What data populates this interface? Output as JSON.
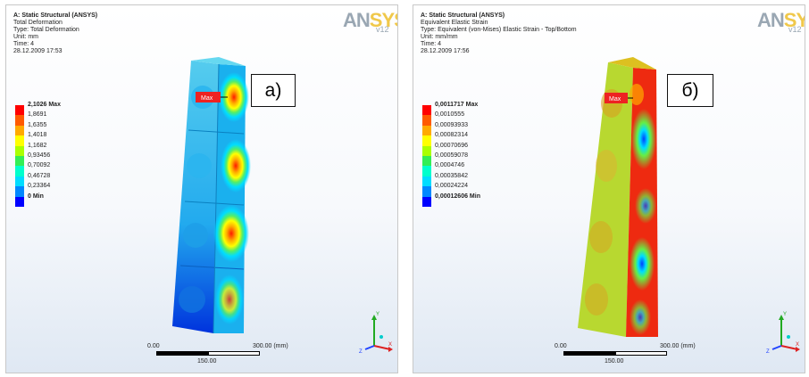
{
  "panel_a": {
    "title": "A: Static Structural (ANSYS)",
    "result": "Total Deformation",
    "type": "Type: Total Deformation",
    "unit": "Unit: mm",
    "time": "Time: 4",
    "date": "28.12.2009 17:53",
    "legend": [
      {
        "label": "2,1026 Max",
        "color": "#ff0000"
      },
      {
        "label": "1,8691",
        "color": "#ff5a00"
      },
      {
        "label": "1,6355",
        "color": "#ffaa00"
      },
      {
        "label": "1,4018",
        "color": "#ffff00"
      },
      {
        "label": "1,1682",
        "color": "#aaff00"
      },
      {
        "label": "0,93456",
        "color": "#33ee55"
      },
      {
        "label": "0,70092",
        "color": "#00ffcc"
      },
      {
        "label": "0,46728",
        "color": "#00ddff"
      },
      {
        "label": "0,23364",
        "color": "#0088ff"
      },
      {
        "label": "0 Min",
        "color": "#0000ff"
      }
    ],
    "max_tag": "Max",
    "label_tag": "a)",
    "scale_left": "0.00",
    "scale_right": "300.00 (mm)",
    "scale_mid": "150.00"
  },
  "panel_b": {
    "title": "A: Static Structural (ANSYS)",
    "result": "Equivalent Elastic Strain",
    "type": "Type: Equivalent (von-Mises) Elastic Strain - Top/Bottom",
    "unit": "Unit: mm/mm",
    "time": "Time: 4",
    "date": "28.12.2009 17:56",
    "legend": [
      {
        "label": "0,0011717 Max",
        "color": "#ff0000"
      },
      {
        "label": "0,0010555",
        "color": "#ff5a00"
      },
      {
        "label": "0,00093933",
        "color": "#ffaa00"
      },
      {
        "label": "0,00082314",
        "color": "#ffff00"
      },
      {
        "label": "0,00070696",
        "color": "#aaff00"
      },
      {
        "label": "0,00059078",
        "color": "#33ee55"
      },
      {
        "label": "0,0004746",
        "color": "#00ffcc"
      },
      {
        "label": "0,00035842",
        "color": "#00ddff"
      },
      {
        "label": "0,00024224",
        "color": "#0088ff"
      },
      {
        "label": "0,00012606 Min",
        "color": "#0000ff"
      }
    ],
    "max_tag": "Max",
    "label_tag": "б)",
    "scale_left": "0.00",
    "scale_right": "300.00 (mm)",
    "scale_mid": "150.00"
  },
  "logo": {
    "text_a": "AN",
    "text_b": "SYS",
    "version": "v12"
  },
  "triad": {
    "y": "Y",
    "z": "Z",
    "x": "X",
    "colors": {
      "y": "#22aa22",
      "z": "#2244ff",
      "x": "#dd2222"
    }
  }
}
